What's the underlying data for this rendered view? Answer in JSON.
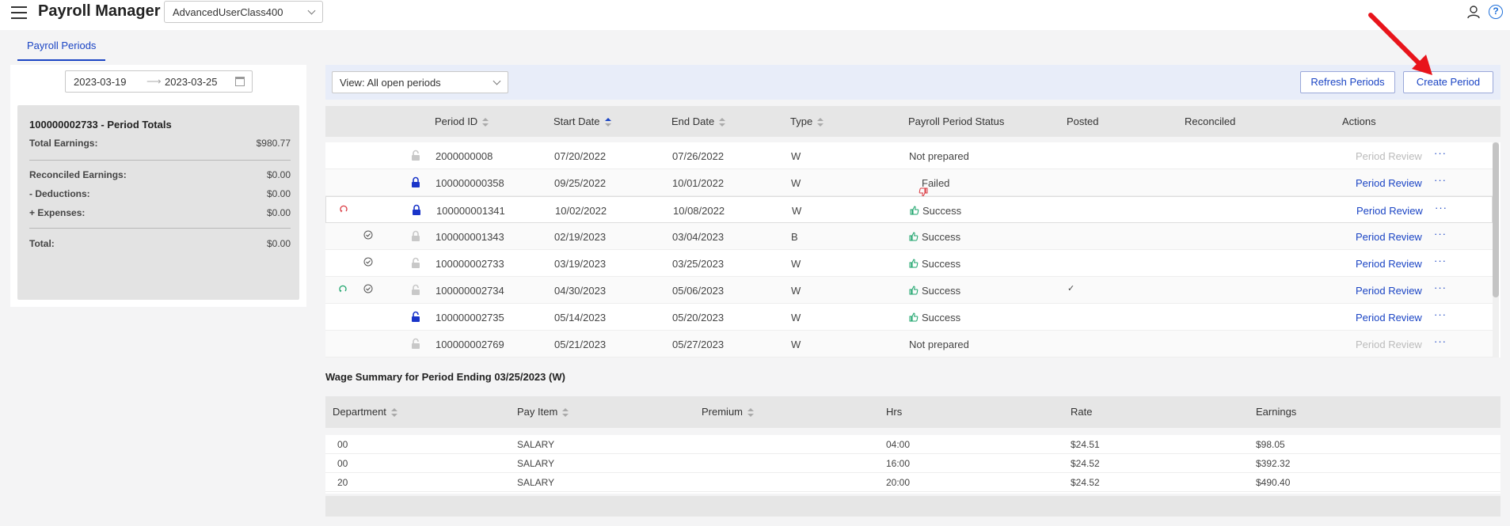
{
  "header": {
    "app_title": "Payroll Manager",
    "company": "AdvancedUserClass400"
  },
  "tabs": [
    {
      "label": "Payroll Periods",
      "active": true
    }
  ],
  "date_range": {
    "start": "2023-03-19",
    "arrow": "⟶",
    "end": "2023-03-25"
  },
  "totals": {
    "title": "100000002733 - Period Totals",
    "total_earnings_label": "Total Earnings",
    "total_earnings": "$980.77",
    "reconciled_label": "Reconciled Earnings",
    "reconciled": "$0.00",
    "deductions_label": "- Deductions",
    "deductions": "$0.00",
    "expenses_label": "+ Expenses",
    "expenses": "$0.00",
    "total_label": "Total",
    "total": "$0.00"
  },
  "toolbar": {
    "view": "View: All open periods",
    "refresh_label": "Refresh Periods",
    "create_label": "Create Period"
  },
  "periods": {
    "columns": {
      "period_id": "Period ID",
      "start_date": "Start Date",
      "end_date": "End Date",
      "type": "Type",
      "status": "Payroll Period Status",
      "posted": "Posted",
      "reconciled": "Reconciled",
      "actions": "Actions"
    },
    "review_label": "Period Review",
    "rows": [
      {
        "id": "2000000008",
        "start": "07/20/2022",
        "end": "07/26/2022",
        "type": "W",
        "status": "Not prepared",
        "status_icon": "",
        "lock": "unlocked-grey",
        "refresh": "",
        "check": false,
        "posted": "",
        "review_enabled": false
      },
      {
        "id": "100000000358",
        "start": "09/25/2022",
        "end": "10/01/2022",
        "type": "W",
        "status": "Failed",
        "status_icon": "thumbs-down",
        "lock": "locked-blue",
        "refresh": "",
        "check": false,
        "posted": "",
        "review_enabled": true
      },
      {
        "id": "100000001341",
        "start": "10/02/2022",
        "end": "10/08/2022",
        "type": "W",
        "status": "Success",
        "status_icon": "thumbs-up",
        "lock": "locked-blue",
        "refresh": "red",
        "check": false,
        "posted": "",
        "review_enabled": true
      },
      {
        "id": "100000001343",
        "start": "02/19/2023",
        "end": "03/04/2023",
        "type": "B",
        "status": "Success",
        "status_icon": "thumbs-up",
        "lock": "locked-grey",
        "refresh": "",
        "check": true,
        "posted": "",
        "review_enabled": true
      },
      {
        "id": "100000002733",
        "start": "03/19/2023",
        "end": "03/25/2023",
        "type": "W",
        "status": "Success",
        "status_icon": "thumbs-up",
        "lock": "unlocked-grey",
        "refresh": "",
        "check": true,
        "posted": "",
        "review_enabled": true
      },
      {
        "id": "100000002734",
        "start": "04/30/2023",
        "end": "05/06/2023",
        "type": "W",
        "status": "Success",
        "status_icon": "thumbs-up",
        "lock": "unlocked-grey",
        "refresh": "green",
        "check": true,
        "posted": "✓",
        "review_enabled": true
      },
      {
        "id": "100000002735",
        "start": "05/14/2023",
        "end": "05/20/2023",
        "type": "W",
        "status": "Success",
        "status_icon": "thumbs-up",
        "lock": "unlocked-blue",
        "refresh": "",
        "check": false,
        "posted": "",
        "review_enabled": true
      },
      {
        "id": "100000002769",
        "start": "05/21/2023",
        "end": "05/27/2023",
        "type": "W",
        "status": "Not prepared",
        "status_icon": "",
        "lock": "unlocked-grey",
        "refresh": "",
        "check": false,
        "posted": "",
        "review_enabled": false
      }
    ]
  },
  "wage_summary": {
    "title": "Wage Summary for Period Ending 03/25/2023 (W)",
    "columns": {
      "department": "Department",
      "pay_item": "Pay Item",
      "premium": "Premium",
      "hrs": "Hrs",
      "rate": "Rate",
      "earnings": "Earnings"
    },
    "rows": [
      {
        "department": "00",
        "pay_item": "SALARY",
        "premium": "",
        "hrs": "04:00",
        "rate": "$24.51",
        "earnings": "$98.05"
      },
      {
        "department": "00",
        "pay_item": "SALARY",
        "premium": "",
        "hrs": "16:00",
        "rate": "$24.52",
        "earnings": "$392.32"
      },
      {
        "department": "20",
        "pay_item": "SALARY",
        "premium": "",
        "hrs": "20:00",
        "rate": "$24.52",
        "earnings": "$490.40"
      }
    ]
  },
  "colors": {
    "accent": "#1a44c4",
    "success": "#1aa36a",
    "failed": "#d9363e",
    "annotation": "#e8141b"
  }
}
